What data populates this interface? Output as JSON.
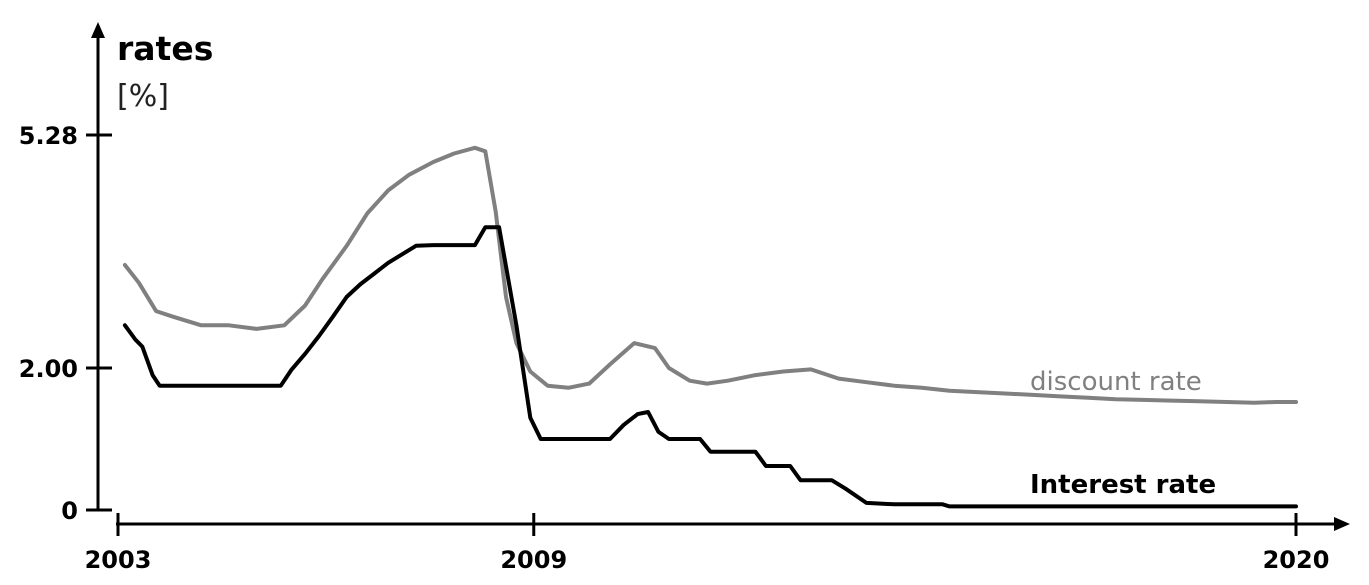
{
  "chart_data": {
    "type": "line",
    "ylabel": "rates",
    "yunit": "[%]",
    "xlim": [
      2003,
      2020
    ],
    "ylim": [
      0,
      5.28
    ],
    "x_ticks": [
      {
        "value": 2003,
        "label": "2003"
      },
      {
        "value": 2009,
        "label": "2009"
      },
      {
        "value": 2020,
        "label": "2020"
      }
    ],
    "y_ticks": [
      {
        "value": 0,
        "label": "0"
      },
      {
        "value": 2.0,
        "label": "2.00"
      },
      {
        "value": 5.28,
        "label": "5.28"
      }
    ],
    "grid": false,
    "series": [
      {
        "name": "discount rate",
        "color": "#808080",
        "x": [
          2003.1,
          2003.3,
          2003.55,
          2003.8,
          2004.2,
          2004.6,
          2005.0,
          2005.4,
          2005.7,
          2005.95,
          2006.3,
          2006.6,
          2006.9,
          2007.2,
          2007.55,
          2007.85,
          2008.15,
          2008.3,
          2008.45,
          2008.6,
          2008.75,
          2008.95,
          2009.2,
          2009.5,
          2009.8,
          2010.1,
          2010.45,
          2010.75,
          2010.95,
          2011.25,
          2011.5,
          2011.8,
          2012.2,
          2012.6,
          2013.0,
          2013.4,
          2013.8,
          2014.2,
          2014.6,
          2015.0,
          2015.4,
          2015.8,
          2016.2,
          2016.6,
          2017.0,
          2017.4,
          2017.8,
          2018.2,
          2018.6,
          2019.0,
          2019.4,
          2019.7,
          2020.0
        ],
        "y": [
          3.45,
          3.2,
          2.8,
          2.72,
          2.6,
          2.6,
          2.55,
          2.6,
          2.88,
          3.25,
          3.72,
          4.18,
          4.5,
          4.72,
          4.9,
          5.02,
          5.1,
          5.05,
          4.2,
          3.0,
          2.35,
          1.95,
          1.75,
          1.72,
          1.78,
          2.05,
          2.35,
          2.28,
          2.0,
          1.82,
          1.78,
          1.82,
          1.9,
          1.95,
          1.98,
          1.85,
          1.8,
          1.75,
          1.72,
          1.68,
          1.66,
          1.64,
          1.62,
          1.6,
          1.58,
          1.56,
          1.55,
          1.54,
          1.53,
          1.52,
          1.51,
          1.52,
          1.52
        ],
        "line_label": "discount rate"
      },
      {
        "name": "Interest rate",
        "color": "#000000",
        "x": [
          2003.1,
          2003.25,
          2003.35,
          2003.5,
          2003.6,
          2003.7,
          2005.35,
          2005.5,
          2005.7,
          2005.9,
          2006.1,
          2006.3,
          2006.5,
          2006.7,
          2006.9,
          2007.1,
          2007.3,
          2007.55,
          2008.15,
          2008.3,
          2008.5,
          2008.75,
          2008.95,
          2009.1,
          2010.1,
          2010.3,
          2010.5,
          2010.65,
          2010.8,
          2010.95,
          2011.4,
          2011.55,
          2012.2,
          2012.35,
          2012.7,
          2012.85,
          2013.3,
          2013.5,
          2013.8,
          2014.2,
          2014.9,
          2015.0,
          2016.5,
          2017.0,
          2018.0,
          2019.0,
          2020.0
        ],
        "y": [
          2.6,
          2.4,
          2.3,
          1.9,
          1.75,
          1.75,
          1.75,
          1.97,
          2.2,
          2.45,
          2.72,
          3.0,
          3.18,
          3.33,
          3.48,
          3.6,
          3.72,
          3.73,
          3.73,
          3.98,
          3.98,
          2.6,
          1.3,
          1.0,
          1.0,
          1.2,
          1.35,
          1.38,
          1.1,
          1.0,
          1.0,
          0.82,
          0.82,
          0.62,
          0.62,
          0.42,
          0.42,
          0.3,
          0.1,
          0.08,
          0.08,
          0.05,
          0.05,
          0.05,
          0.05,
          0.05,
          0.05
        ],
        "line_label": "Interest rate"
      }
    ]
  }
}
